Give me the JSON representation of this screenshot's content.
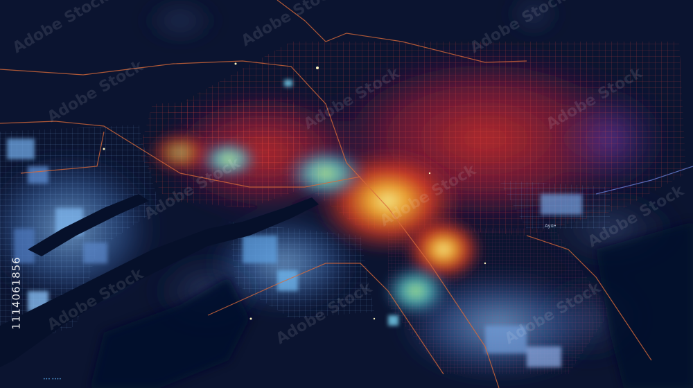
{
  "image": {
    "kind": "abstract night heatmap of a city street grid",
    "colors": {
      "background": "#0b1430",
      "water": "#06102a",
      "cool_low": "#6fa9e6",
      "cool_mid": "#5fd0e0",
      "warm_mid": "#e0452a",
      "warm_high": "#ff8a1f",
      "peak": "#ffe36a",
      "purple_fringe": "#5a2a8a",
      "road": "#d96a3a"
    }
  },
  "watermark": {
    "text": "Adobe Stock",
    "stock_id": "1114061856"
  },
  "map_labels": {
    "small_district": "Ayɑ•"
  },
  "footer": {
    "credit_tiny": "••• ••••"
  }
}
